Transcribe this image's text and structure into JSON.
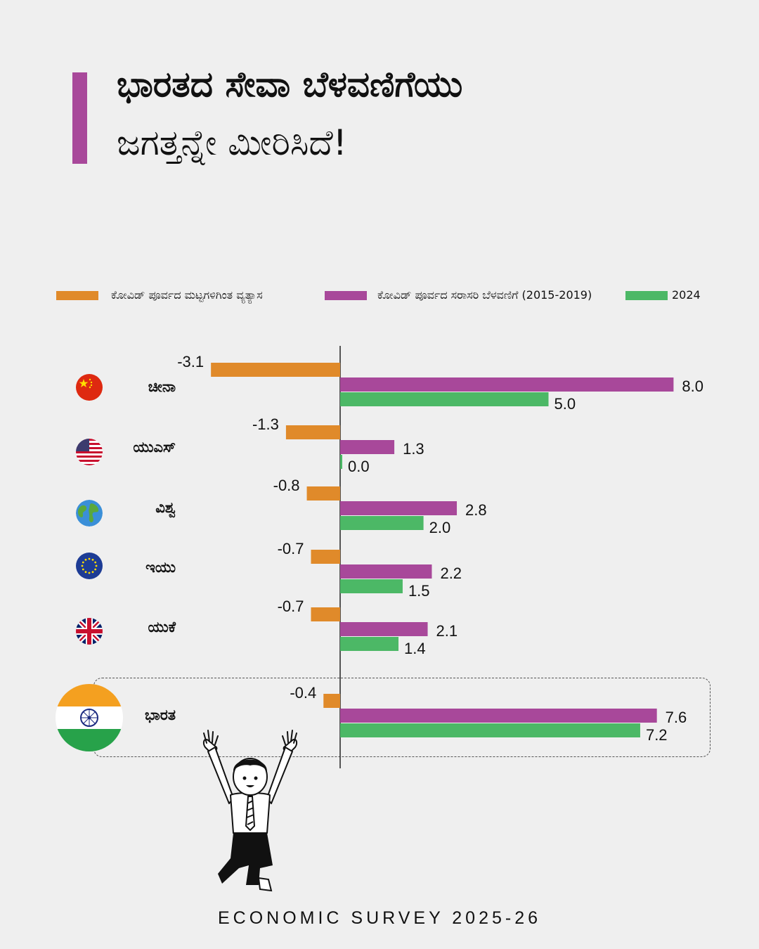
{
  "title": {
    "line1": "ಭಾರತದ ಸೇವಾ ಬೆಳವಣಿಗೆಯು",
    "line2": "ಜಗತ್ತನ್ನೇ ಮೀರಿಸಿದೆ!"
  },
  "legend": [
    {
      "label": "ಕೋವಿಡ್ ಪೂರ್ವದ ಮಟ್ಟಗಳಿಗಿಂತ ವ್ಯತ್ಯಾಸ",
      "color": "#e08a2a"
    },
    {
      "label": "ಕೋವಿಡ್ ಪೂರ್ವದ ಸರಾಸರಿ ಬೆಳವಣಿಗೆ (2015-2019)",
      "color": "#a8489a"
    },
    {
      "label": "2024",
      "color": "#4cb866"
    }
  ],
  "colors": {
    "accent": "#a8489a",
    "orange": "#e08a2a",
    "purple": "#a8489a",
    "green": "#4cb866"
  },
  "chart_data": {
    "type": "bar",
    "orientation": "horizontal",
    "categories": [
      "ಚೀನಾ",
      "ಯುಎಸ್",
      "ವಿಶ್ವ",
      "ಇಯು",
      "ಯುಕೆ",
      "ಭಾರತ"
    ],
    "flags": [
      "china-flag",
      "us-flag",
      "globe",
      "eu-flag",
      "uk-flag",
      "india-flag"
    ],
    "series": [
      {
        "name": "ಕೋವಿಡ್ ಪೂರ್ವದ ಮಟ್ಟಗಳಿಗಿಂತ ವ್ಯತ್ಯಾಸ",
        "values": [
          -3.1,
          -1.3,
          -0.8,
          -0.7,
          -0.7,
          -0.4
        ],
        "labels": [
          "-3.1",
          "-1.3",
          "-0.8",
          "-0.7",
          "-0.7",
          "-0.4"
        ],
        "color": "#e08a2a"
      },
      {
        "name": "ಕೋವಿಡ್ ಪೂರ್ವದ ಸರಾಸರಿ ಬೆಳವಣಿಗೆ (2015-2019)",
        "values": [
          8.0,
          1.3,
          2.8,
          2.2,
          2.1,
          7.6
        ],
        "labels": [
          "8.0",
          "1.3",
          "2.8",
          "2.2",
          "2.1",
          "7.6"
        ],
        "color": "#a8489a"
      },
      {
        "name": "2024",
        "values": [
          5.0,
          0.0,
          2.0,
          1.5,
          1.4,
          7.2
        ],
        "labels": [
          "5.0",
          "0.0",
          "2.0",
          "1.5",
          "1.4",
          "7.2"
        ],
        "color": "#4cb866"
      }
    ],
    "highlight": "ಭಾರತ",
    "legend_position": "top"
  },
  "footer": "ECONOMIC SURVEY 2025-26"
}
